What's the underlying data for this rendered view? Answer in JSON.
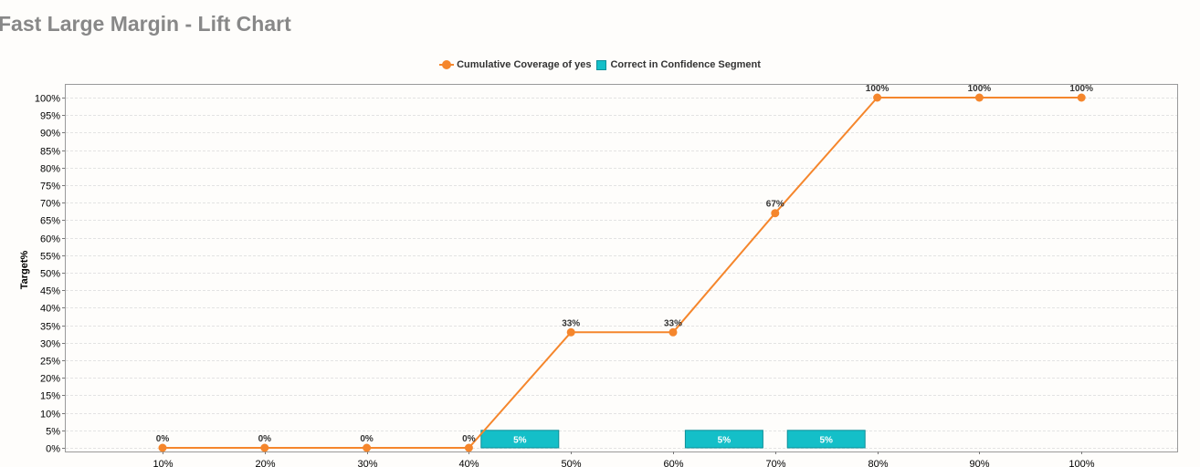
{
  "page_title": "Fast Large Margin - Lift Chart",
  "legend": {
    "line_series_label": "Cumulative Coverage of yes",
    "bar_series_label": "Correct in Confidence Segment"
  },
  "chart_data": {
    "type": "line",
    "title": "Fast Large Margin - Lift Chart",
    "xlabel": "",
    "ylabel": "Target%",
    "categories": [
      "10%",
      "20%",
      "30%",
      "40%",
      "50%",
      "60%",
      "70%",
      "80%",
      "90%",
      "100%"
    ],
    "ylim": [
      0,
      100
    ],
    "y_ticks": [
      "0%",
      "5%",
      "10%",
      "15%",
      "20%",
      "25%",
      "30%",
      "35%",
      "40%",
      "45%",
      "50%",
      "55%",
      "60%",
      "65%",
      "70%",
      "75%",
      "80%",
      "85%",
      "90%",
      "95%",
      "100%"
    ],
    "grid": true,
    "legend_position": "top-center",
    "series": [
      {
        "name": "Cumulative Coverage of yes",
        "kind": "line",
        "color": "#f5862c",
        "values": [
          0,
          0,
          0,
          0,
          33,
          33,
          67,
          100,
          100,
          100
        ],
        "labels": [
          "0%",
          "0%",
          "0%",
          "0%",
          "33%",
          "33%",
          "67%",
          "100%",
          "100%",
          "100%"
        ]
      },
      {
        "name": "Correct in Confidence Segment",
        "kind": "bar",
        "color": "#14bfc8",
        "values": [
          0,
          0,
          0,
          0,
          5,
          0,
          5,
          5,
          0,
          0
        ],
        "labels": [
          "",
          "",
          "",
          "",
          "5%",
          "",
          "5%",
          "5%",
          "",
          ""
        ]
      }
    ]
  }
}
